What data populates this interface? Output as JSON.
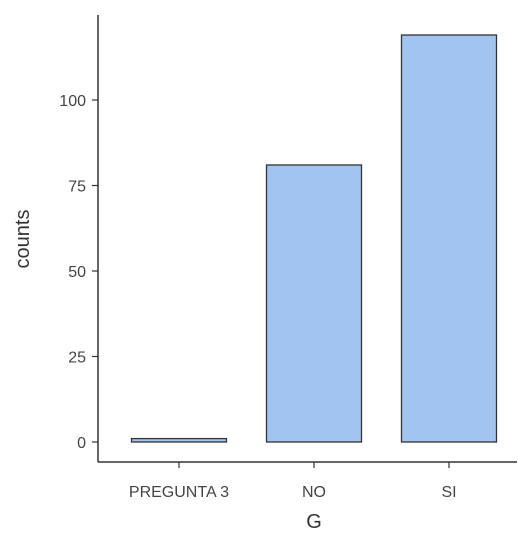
{
  "chart_data": {
    "type": "bar",
    "categories": [
      "PREGUNTA 3",
      "NO",
      "SI"
    ],
    "values": [
      1,
      81,
      119
    ],
    "xlabel": "G",
    "ylabel": "counts",
    "ylim": [
      0,
      125
    ],
    "yticks": [
      0,
      25,
      50,
      75,
      100
    ],
    "grid": false,
    "bar_fill": "#a4c4f0",
    "bar_stroke": "#333333"
  }
}
